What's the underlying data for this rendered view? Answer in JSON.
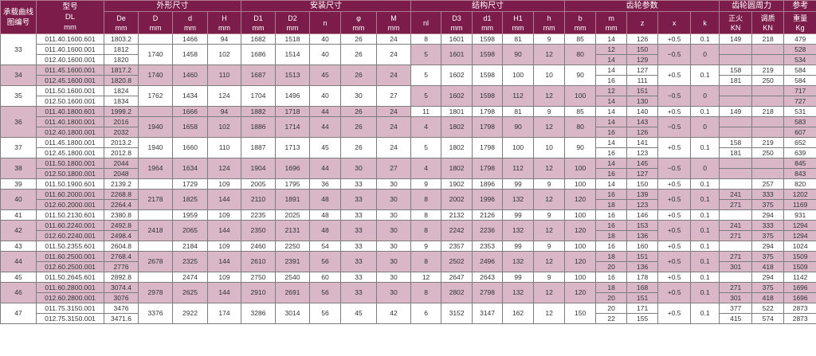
{
  "header": {
    "curve": "承载曲线图编号",
    "curve_l1": "承载曲线",
    "curve_l2": "图编号",
    "model": "型号",
    "model_sym": "DL",
    "model_unit": "mm",
    "groups": {
      "outline": "外形尺寸",
      "install": "安装尺寸",
      "structure": "结构尺寸",
      "gear": "齿轮参数",
      "force": "齿轮圆周力",
      "ref": "参考"
    },
    "columns": [
      {
        "k": "De",
        "l": "De",
        "u": "mm"
      },
      {
        "k": "D",
        "l": "D",
        "u": "mm"
      },
      {
        "k": "d",
        "l": "d",
        "u": "mm"
      },
      {
        "k": "H",
        "l": "H",
        "u": "mm"
      },
      {
        "k": "D1",
        "l": "D1",
        "u": "mm"
      },
      {
        "k": "D2",
        "l": "D2",
        "u": "mm"
      },
      {
        "k": "n",
        "l": "n",
        "u": ""
      },
      {
        "k": "phi",
        "l": "φ",
        "u": "mm"
      },
      {
        "k": "M",
        "l": "M",
        "u": "mm"
      },
      {
        "k": "nl",
        "l": "nl",
        "u": ""
      },
      {
        "k": "D3",
        "l": "D3",
        "u": "mm"
      },
      {
        "k": "d1",
        "l": "d1",
        "u": "mm"
      },
      {
        "k": "H1",
        "l": "H1",
        "u": "mm"
      },
      {
        "k": "h",
        "l": "h",
        "u": "mm"
      },
      {
        "k": "b",
        "l": "b",
        "u": "mm"
      },
      {
        "k": "m",
        "l": "m",
        "u": "mm"
      },
      {
        "k": "z",
        "l": "z",
        "u": ""
      },
      {
        "k": "x",
        "l": "x",
        "u": ""
      },
      {
        "k": "k",
        "l": "k",
        "u": ""
      },
      {
        "k": "zh",
        "l": "正火",
        "u": "KN"
      },
      {
        "k": "tz",
        "l": "调质",
        "u": "KN"
      },
      {
        "k": "kg",
        "l": "重量",
        "u": "Kg"
      }
    ]
  },
  "colors": {
    "header": "#7b1c4b",
    "shade": "#d9b7c7"
  },
  "groups": [
    {
      "id": "33",
      "rows": [
        [
          "011.40.1600.601",
          "1803.2"
        ],
        [
          "011.40.1600.001",
          "1812"
        ],
        [
          "012.40.1600.001",
          "1820"
        ]
      ],
      "blocks": [
        {
          "D": "",
          "d": "1466",
          "H": "94",
          "D1": "1682",
          "D2": "1518",
          "n": "40",
          "phi": "26",
          "M": "24",
          "nl": "8",
          "D3": "1601",
          "d1": "1598",
          "H1": "81",
          "h": "9",
          "b": "85",
          "x": "+0.5",
          "k": "0.1",
          "shade": false,
          "gear": [
            {
              "m": "14",
              "z": "126",
              "zh": "149",
              "tz": "218",
              "kg": "479"
            }
          ]
        },
        {
          "D": "1740",
          "d": "1458",
          "H": "102",
          "D1": "1686",
          "D2": "1514",
          "n": "40",
          "phi": "26",
          "M": "24",
          "nl": "5",
          "D3": "1601",
          "d1": "1598",
          "H1": "90",
          "h": "12",
          "b": "80",
          "x": "−0.5",
          "k": "0",
          "shade": true,
          "gear": [
            {
              "m": "12",
              "z": "150",
              "zh": "",
              "tz": "",
              "kg": "528"
            },
            {
              "m": "14",
              "z": "129",
              "zh": "",
              "tz": "",
              "kg": "534"
            }
          ]
        }
      ]
    },
    {
      "id": "34",
      "rows": [
        [
          "011.45.1600.001",
          "1817.2"
        ],
        [
          "012.45.1600.001",
          "1820.8"
        ]
      ],
      "blocks": [
        {
          "D": "1740",
          "d": "1460",
          "H": "110",
          "D1": "1687",
          "D2": "1513",
          "n": "45",
          "phi": "26",
          "M": "24",
          "nl": "5",
          "D3": "1602",
          "d1": "1598",
          "H1": "100",
          "h": "10",
          "b": "90",
          "x": "+0.5",
          "k": "0.1",
          "shade": false,
          "gear": [
            {
              "m": "14",
              "z": "127",
              "zh": "158",
              "tz": "219",
              "kg": "584"
            },
            {
              "m": "16",
              "z": "111",
              "zh": "181",
              "tz": "250",
              "kg": "584"
            }
          ]
        }
      ]
    },
    {
      "id": "35",
      "rows": [
        [
          "011.50.1600.001",
          "1824"
        ],
        [
          "012.50.1600.001",
          "1834"
        ]
      ],
      "blocks": [
        {
          "D": "1762",
          "d": "1434",
          "H": "124",
          "D1": "1704",
          "D2": "1496",
          "n": "40",
          "phi": "30",
          "M": "27",
          "nl": "5",
          "D3": "1602",
          "d1": "1598",
          "H1": "112",
          "h": "12",
          "b": "100",
          "x": "−0.5",
          "k": "0",
          "shade": true,
          "gear": [
            {
              "m": "12",
              "z": "151",
              "zh": "",
              "tz": "",
              "kg": "717"
            },
            {
              "m": "14",
              "z": "130",
              "zh": "",
              "tz": "",
              "kg": "727"
            }
          ]
        }
      ]
    },
    {
      "id": "36",
      "rows": [
        [
          "011.40.1800.601",
          "1999.2"
        ],
        [
          "011.40.1800.001",
          "2016"
        ],
        [
          "012.40.1800.001",
          "2032"
        ]
      ],
      "blocks": [
        {
          "D": "",
          "d": "1666",
          "H": "94",
          "D1": "1882",
          "D2": "1718",
          "n": "44",
          "phi": "26",
          "M": "24",
          "nl": "11",
          "D3": "1801",
          "d1": "1798",
          "H1": "81",
          "h": "9",
          "b": "85",
          "x": "+0.5",
          "k": "0.1",
          "shade": false,
          "gear": [
            {
              "m": "14",
              "z": "140",
              "zh": "149",
              "tz": "218",
              "kg": "531"
            }
          ]
        },
        {
          "D": "1940",
          "d": "1658",
          "H": "102",
          "D1": "1886",
          "D2": "1714",
          "n": "44",
          "phi": "26",
          "M": "24",
          "nl": "4",
          "D3": "1802",
          "d1": "1798",
          "H1": "90",
          "h": "12",
          "b": "80",
          "x": "−0.5",
          "k": "0",
          "shade": true,
          "gear": [
            {
              "m": "14",
              "z": "143",
              "zh": "",
              "tz": "",
              "kg": "583"
            },
            {
              "m": "16",
              "z": "126",
              "zh": "",
              "tz": "",
              "kg": "607"
            }
          ]
        }
      ]
    },
    {
      "id": "37",
      "rows": [
        [
          "011.45.1800.001",
          "2013.2"
        ],
        [
          "012.45.1800.001",
          "2012.8"
        ]
      ],
      "blocks": [
        {
          "D": "1940",
          "d": "1660",
          "H": "110",
          "D1": "1887",
          "D2": "1713",
          "n": "45",
          "phi": "26",
          "M": "24",
          "nl": "5",
          "D3": "1802",
          "d1": "1798",
          "H1": "100",
          "h": "10",
          "b": "90",
          "x": "+0.5",
          "k": "0.1",
          "shade": false,
          "gear": [
            {
              "m": "14",
              "z": "141",
              "zh": "158",
              "tz": "219",
              "kg": "652"
            },
            {
              "m": "16",
              "z": "123",
              "zh": "181",
              "tz": "250",
              "kg": "639"
            }
          ]
        }
      ]
    },
    {
      "id": "38",
      "rows": [
        [
          "011.50.1800.001",
          "2044"
        ],
        [
          "012.50.1800.001",
          "2048"
        ]
      ],
      "blocks": [
        {
          "D": "1964",
          "d": "1634",
          "H": "124",
          "D1": "1904",
          "D2": "1696",
          "n": "44",
          "phi": "30",
          "M": "27",
          "nl": "4",
          "D3": "1802",
          "d1": "1798",
          "H1": "112",
          "h": "12",
          "b": "100",
          "x": "−0.5",
          "k": "0",
          "shade": true,
          "gear": [
            {
              "m": "14",
              "z": "145",
              "zh": "",
              "tz": "",
              "kg": "845"
            },
            {
              "m": "16",
              "z": "127",
              "zh": "",
              "tz": "",
              "kg": "843"
            }
          ]
        }
      ]
    },
    {
      "id": "39",
      "rows": [
        [
          "011.50.1900.601",
          "2139.2"
        ]
      ],
      "blocks": [
        {
          "D": "",
          "d": "1729",
          "H": "109",
          "D1": "2005",
          "D2": "1795",
          "n": "36",
          "phi": "33",
          "M": "30",
          "nl": "9",
          "D3": "1902",
          "d1": "1896",
          "H1": "99",
          "h": "9",
          "b": "100",
          "x": "+0.5",
          "k": "0.1",
          "shade": false,
          "gear": [
            {
              "m": "14",
              "z": "150",
              "zh": "",
              "tz": "257",
              "kg": "820"
            }
          ]
        }
      ]
    },
    {
      "id": "40",
      "rows": [
        [
          "011.60.2000.001",
          "2268.8"
        ],
        [
          "012.60.2000.001",
          "2264.4"
        ]
      ],
      "blocks": [
        {
          "D": "2178",
          "d": "1825",
          "H": "144",
          "D1": "2110",
          "D2": "1891",
          "n": "48",
          "phi": "33",
          "M": "30",
          "nl": "8",
          "D3": "2002",
          "d1": "1996",
          "H1": "132",
          "h": "12",
          "b": "120",
          "x": "+0.5",
          "k": "0.1",
          "shade": true,
          "gear": [
            {
              "m": "16",
              "z": "139",
              "zh": "241",
              "tz": "333",
              "kg": "1202"
            },
            {
              "m": "18",
              "z": "123",
              "zh": "271",
              "tz": "375",
              "kg": "1169"
            }
          ]
        }
      ]
    },
    {
      "id": "41",
      "rows": [
        [
          "011.50.2130.601",
          "2380.8"
        ]
      ],
      "blocks": [
        {
          "D": "",
          "d": "1959",
          "H": "109",
          "D1": "2235",
          "D2": "2025",
          "n": "48",
          "phi": "33",
          "M": "30",
          "nl": "8",
          "D3": "2132",
          "d1": "2126",
          "H1": "99",
          "h": "9",
          "b": "100",
          "x": "+0.5",
          "k": "0.1",
          "shade": false,
          "gear": [
            {
              "m": "16",
              "z": "146",
              "zh": "",
              "tz": "294",
              "kg": "931"
            }
          ]
        }
      ]
    },
    {
      "id": "42",
      "rows": [
        [
          "011.60.2240.001",
          "2492.8"
        ],
        [
          "012.60.2240.001",
          "2498.4"
        ]
      ],
      "blocks": [
        {
          "D": "2418",
          "d": "2065",
          "H": "144",
          "D1": "2350",
          "D2": "2131",
          "n": "48",
          "phi": "33",
          "M": "30",
          "nl": "8",
          "D3": "2242",
          "d1": "2236",
          "H1": "132",
          "h": "12",
          "b": "120",
          "x": "+0.5",
          "k": "0.1",
          "shade": true,
          "gear": [
            {
              "m": "16",
              "z": "153",
              "zh": "241",
              "tz": "333",
              "kg": "1294"
            },
            {
              "m": "18",
              "z": "136",
              "zh": "271",
              "tz": "375",
              "kg": "1294"
            }
          ]
        }
      ]
    },
    {
      "id": "43",
      "rows": [
        [
          "011.50.2355.601",
          "2604.8"
        ]
      ],
      "blocks": [
        {
          "D": "",
          "d": "2184",
          "H": "109",
          "D1": "2460",
          "D2": "2250",
          "n": "54",
          "phi": "33",
          "M": "30",
          "nl": "9",
          "D3": "2357",
          "d1": "2353",
          "H1": "99",
          "h": "9",
          "b": "100",
          "x": "+0.5",
          "k": "0.1",
          "shade": false,
          "gear": [
            {
              "m": "16",
              "z": "160",
              "zh": "",
              "tz": "294",
              "kg": "1024"
            }
          ]
        }
      ]
    },
    {
      "id": "44",
      "rows": [
        [
          "011.60.2500.001",
          "2768.4"
        ],
        [
          "012.60.2500.001",
          "2776"
        ]
      ],
      "blocks": [
        {
          "D": "2678",
          "d": "2325",
          "H": "144",
          "D1": "2610",
          "D2": "2391",
          "n": "56",
          "phi": "33",
          "M": "30",
          "nl": "8",
          "D3": "2502",
          "d1": "2496",
          "H1": "132",
          "h": "12",
          "b": "120",
          "x": "+0.5",
          "k": "0.1",
          "shade": true,
          "gear": [
            {
              "m": "18",
              "z": "151",
              "zh": "271",
              "tz": "375",
              "kg": "1509"
            },
            {
              "m": "20",
              "z": "136",
              "zh": "301",
              "tz": "418",
              "kg": "1509"
            }
          ]
        }
      ]
    },
    {
      "id": "45",
      "rows": [
        [
          "011.50.2645.601",
          "2892.8"
        ]
      ],
      "blocks": [
        {
          "D": "",
          "d": "2474",
          "H": "109",
          "D1": "2750",
          "D2": "2540",
          "n": "60",
          "phi": "33",
          "M": "30",
          "nl": "12",
          "D3": "2647",
          "d1": "2643",
          "H1": "99",
          "h": "9",
          "b": "100",
          "x": "+0.5",
          "k": "0.1",
          "shade": false,
          "gear": [
            {
              "m": "16",
              "z": "178",
              "zh": "",
              "tz": "294",
              "kg": "1142"
            }
          ]
        }
      ]
    },
    {
      "id": "46",
      "rows": [
        [
          "011.60.2800.001",
          "3074.4"
        ],
        [
          "012.60.2800.001",
          "3076"
        ]
      ],
      "blocks": [
        {
          "D": "2978",
          "d": "2625",
          "H": "144",
          "D1": "2910",
          "D2": "2691",
          "n": "56",
          "phi": "33",
          "M": "30",
          "nl": "8",
          "D3": "2802",
          "d1": "2798",
          "H1": "132",
          "h": "12",
          "b": "120",
          "x": "+0.5",
          "k": "0.1",
          "shade": true,
          "gear": [
            {
              "m": "18",
              "z": "168",
              "zh": "271",
              "tz": "375",
              "kg": "1696"
            },
            {
              "m": "20",
              "z": "151",
              "zh": "301",
              "tz": "418",
              "kg": "1696"
            }
          ]
        }
      ]
    },
    {
      "id": "47",
      "rows": [
        [
          "011.75.3150.001",
          "3476"
        ],
        [
          "012.75.3150.001",
          "3471.6"
        ]
      ],
      "blocks": [
        {
          "D": "3376",
          "d": "2922",
          "H": "174",
          "D1": "3286",
          "D2": "3014",
          "n": "56",
          "phi": "45",
          "M": "42",
          "nl": "6",
          "D3": "3152",
          "d1": "3147",
          "H1": "162",
          "h": "12",
          "b": "150",
          "x": "+0.5",
          "k": "0.1",
          "shade": false,
          "gear": [
            {
              "m": "20",
              "z": "171",
              "zh": "377",
              "tz": "522",
              "kg": "2873"
            },
            {
              "m": "22",
              "z": "155",
              "zh": "415",
              "tz": "574",
              "kg": "2873"
            }
          ]
        }
      ]
    }
  ]
}
